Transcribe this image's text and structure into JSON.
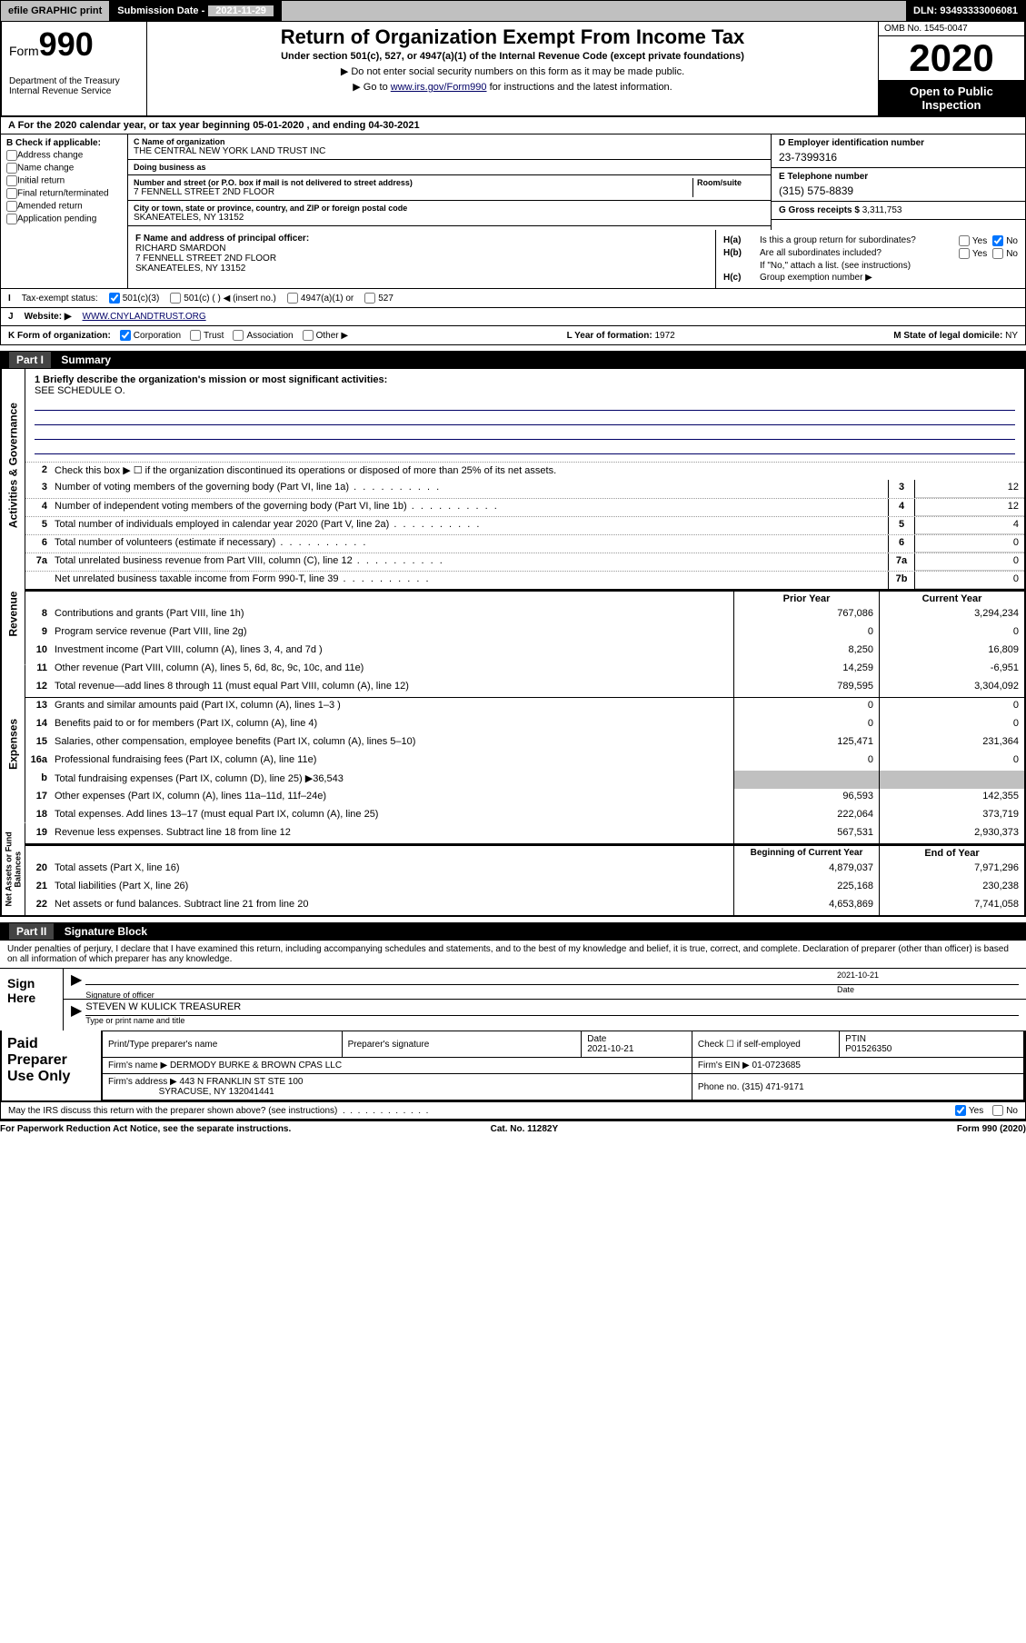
{
  "topbar": {
    "efile": "efile GRAPHIC print",
    "subdate_label": "Submission Date -",
    "subdate_value": "2021-11-29",
    "dln_label": "DLN:",
    "dln_value": "93493333006081"
  },
  "header": {
    "form_word": "Form",
    "form_num": "990",
    "dept": "Department of the Treasury\nInternal Revenue Service",
    "title": "Return of Organization Exempt From Income Tax",
    "subtitle": "Under section 501(c), 527, or 4947(a)(1) of the Internal Revenue Code (except private foundations)",
    "note1": "▶ Do not enter social security numbers on this form as it may be made public.",
    "note2_pre": "▶ Go to ",
    "note2_link": "www.irs.gov/Form990",
    "note2_post": " for instructions and the latest information.",
    "omb": "OMB No. 1545-0047",
    "year": "2020",
    "open": "Open to Public Inspection"
  },
  "a_row": "A For the 2020 calendar year, or tax year beginning 05-01-2020    , and ending 04-30-2021",
  "entity": {
    "b_head": "B Check if applicable:",
    "checks": [
      "Address change",
      "Name change",
      "Initial return",
      "Final return/terminated",
      "Amended return",
      "Application pending"
    ],
    "c_label": "C Name of organization",
    "c_val": "THE CENTRAL NEW YORK LAND TRUST INC",
    "dba_label": "Doing business as",
    "street_label": "Number and street (or P.O. box if mail is not delivered to street address)",
    "room_label": "Room/suite",
    "street_val": "7 FENNELL STREET 2ND FLOOR",
    "city_label": "City or town, state or province, country, and ZIP or foreign postal code",
    "city_val": "SKANEATELES, NY  13152",
    "d_label": "D Employer identification number",
    "d_val": "23-7399316",
    "e_label": "E Telephone number",
    "e_val": "(315) 575-8839",
    "g_label": "G Gross receipts $",
    "g_val": "3,311,753"
  },
  "fg": {
    "f_label": "F  Name and address of principal officer:",
    "f_name": "RICHARD SMARDON",
    "f_addr1": "7 FENNELL STREET 2ND FLOOR",
    "f_addr2": "SKANEATELES, NY  13152",
    "ha_label": "H(a)",
    "ha_txt": "Is this a group return for subordinates?",
    "hb_label": "H(b)",
    "hb_txt": "Are all subordinates included?",
    "h_note": "If \"No,\" attach a list. (see instructions)",
    "hc_label": "H(c)",
    "hc_txt": "Group exemption number ▶",
    "yes": "Yes",
    "no": "No"
  },
  "taxstatus": {
    "i_label": "I",
    "label": "Tax-exempt status:",
    "opts": [
      "501(c)(3)",
      "501(c) (  ) ◀ (insert no.)",
      "4947(a)(1) or",
      "527"
    ]
  },
  "website": {
    "j_label": "J",
    "label": "Website: ▶",
    "val": "WWW.CNYLANDTRUST.ORG"
  },
  "k_row": {
    "k_label": "K Form of organization:",
    "opts": [
      "Corporation",
      "Trust",
      "Association",
      "Other ▶"
    ],
    "l_label": "L Year of formation:",
    "l_val": "1972",
    "m_label": "M State of legal domicile:",
    "m_val": "NY"
  },
  "part1": {
    "head": "Part I",
    "title": "Summary",
    "side_gov": "Activities & Governance",
    "side_rev": "Revenue",
    "side_exp": "Expenses",
    "side_net": "Net Assets or Fund Balances",
    "q1": "1  Briefly describe the organization's mission or most significant activities:",
    "q1_val": "SEE SCHEDULE O.",
    "q2": "Check this box ▶ ☐  if the organization discontinued its operations or disposed of more than 25% of its net assets.",
    "lines_single": [
      {
        "n": "3",
        "t": "Number of voting members of the governing body (Part VI, line 1a)",
        "c": "3",
        "v": "12"
      },
      {
        "n": "4",
        "t": "Number of independent voting members of the governing body (Part VI, line 1b)",
        "c": "4",
        "v": "12"
      },
      {
        "n": "5",
        "t": "Total number of individuals employed in calendar year 2020 (Part V, line 2a)",
        "c": "5",
        "v": "4"
      },
      {
        "n": "6",
        "t": "Total number of volunteers (estimate if necessary)",
        "c": "6",
        "v": "0"
      },
      {
        "n": "7a",
        "t": "Total unrelated business revenue from Part VIII, column (C), line 12",
        "c": "7a",
        "v": "0"
      },
      {
        "n": "",
        "t": "Net unrelated business taxable income from Form 990-T, line 39",
        "c": "7b",
        "v": "0"
      }
    ],
    "col_prior": "Prior Year",
    "col_curr": "Current Year",
    "revenue": [
      {
        "n": "8",
        "t": "Contributions and grants (Part VIII, line 1h)",
        "p": "767,086",
        "c": "3,294,234"
      },
      {
        "n": "9",
        "t": "Program service revenue (Part VIII, line 2g)",
        "p": "0",
        "c": "0"
      },
      {
        "n": "10",
        "t": "Investment income (Part VIII, column (A), lines 3, 4, and 7d )",
        "p": "8,250",
        "c": "16,809"
      },
      {
        "n": "11",
        "t": "Other revenue (Part VIII, column (A), lines 5, 6d, 8c, 9c, 10c, and 11e)",
        "p": "14,259",
        "c": "-6,951"
      },
      {
        "n": "12",
        "t": "Total revenue—add lines 8 through 11 (must equal Part VIII, column (A), line 12)",
        "p": "789,595",
        "c": "3,304,092"
      }
    ],
    "expenses": [
      {
        "n": "13",
        "t": "Grants and similar amounts paid (Part IX, column (A), lines 1–3 )",
        "p": "0",
        "c": "0"
      },
      {
        "n": "14",
        "t": "Benefits paid to or for members (Part IX, column (A), line 4)",
        "p": "0",
        "c": "0"
      },
      {
        "n": "15",
        "t": "Salaries, other compensation, employee benefits (Part IX, column (A), lines 5–10)",
        "p": "125,471",
        "c": "231,364"
      },
      {
        "n": "16a",
        "t": "Professional fundraising fees (Part IX, column (A), line 11e)",
        "p": "0",
        "c": "0"
      },
      {
        "n": "b",
        "t": "Total fundraising expenses (Part IX, column (D), line 25) ▶36,543",
        "p": "",
        "c": "",
        "shade": true
      },
      {
        "n": "17",
        "t": "Other expenses (Part IX, column (A), lines 11a–11d, 11f–24e)",
        "p": "96,593",
        "c": "142,355"
      },
      {
        "n": "18",
        "t": "Total expenses. Add lines 13–17 (must equal Part IX, column (A), line 25)",
        "p": "222,064",
        "c": "373,719"
      },
      {
        "n": "19",
        "t": "Revenue less expenses. Subtract line 18 from line 12",
        "p": "567,531",
        "c": "2,930,373"
      }
    ],
    "col_begin": "Beginning of Current Year",
    "col_end": "End of Year",
    "netassets": [
      {
        "n": "20",
        "t": "Total assets (Part X, line 16)",
        "p": "4,879,037",
        "c": "7,971,296"
      },
      {
        "n": "21",
        "t": "Total liabilities (Part X, line 26)",
        "p": "225,168",
        "c": "230,238"
      },
      {
        "n": "22",
        "t": "Net assets or fund balances. Subtract line 21 from line 20",
        "p": "4,653,869",
        "c": "7,741,058"
      }
    ]
  },
  "part2": {
    "head": "Part II",
    "title": "Signature Block",
    "intro": "Under penalties of perjury, I declare that I have examined this return, including accompanying schedules and statements, and to the best of my knowledge and belief, it is true, correct, and complete. Declaration of preparer (other than officer) is based on all information of which preparer has any knowledge.",
    "sign_here": "Sign Here",
    "sig_officer": "Signature of officer",
    "sig_date": "2021-10-21",
    "date_label": "Date",
    "officer_name": "STEVEN W KULICK  TREASURER",
    "officer_sub": "Type or print name and title",
    "paid_label": "Paid Preparer Use Only",
    "col_print": "Print/Type preparer's name",
    "col_psig": "Preparer's signature",
    "col_pdate": "Date",
    "pdate_val": "2021-10-21",
    "col_check": "Check ☐ if self-employed",
    "col_ptin": "PTIN",
    "ptin_val": "P01526350",
    "firm_name_label": "Firm's name      ▶",
    "firm_name": "DERMODY BURKE & BROWN CPAS LLC",
    "firm_ein_label": "Firm's EIN ▶",
    "firm_ein": "01-0723685",
    "firm_addr_label": "Firm's address ▶",
    "firm_addr1": "443 N FRANKLIN ST STE 100",
    "firm_addr2": "SYRACUSE, NY  132041441",
    "phone_label": "Phone no.",
    "phone": "(315) 471-9171"
  },
  "discuss": {
    "q": "May the IRS discuss this return with the preparer shown above? (see instructions)",
    "yes": "Yes",
    "no": "No"
  },
  "footer": {
    "left": "For Paperwork Reduction Act Notice, see the separate instructions.",
    "mid": "Cat. No. 11282Y",
    "right": "Form 990 (2020)"
  },
  "colors": {
    "link": "#000066",
    "shade": "#c0c0c0"
  }
}
